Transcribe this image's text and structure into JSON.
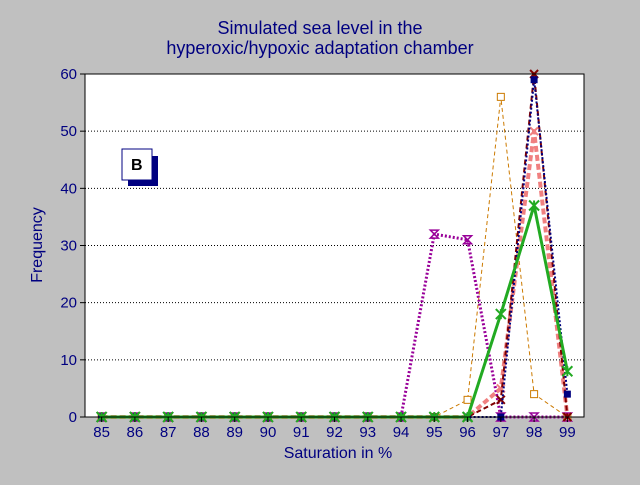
{
  "chart_data": {
    "type": "line",
    "title_line1": "Simulated sea level in the",
    "title_line2": "hyperoxic/hypoxic adaptation chamber",
    "xlabel": "Saturation in %",
    "ylabel": "Frequency",
    "panel_label": "B",
    "x": [
      85,
      86,
      87,
      88,
      89,
      90,
      91,
      92,
      93,
      94,
      95,
      96,
      97,
      98,
      99
    ],
    "xlim": [
      84.5,
      99.5
    ],
    "ylim": [
      0,
      60
    ],
    "yticks": [
      0,
      10,
      20,
      30,
      40,
      50,
      60
    ],
    "grid": "horizontal dotted",
    "colors": {
      "background": "#c0c0c0",
      "axis_text": "#000080",
      "plot_area": "#ffffff"
    },
    "series": [
      {
        "color": "#cc7a00",
        "style": "dashed-thin",
        "marker": "open-square",
        "values": [
          0,
          0,
          0,
          0,
          0,
          0,
          0,
          0,
          0,
          0,
          0,
          3,
          56,
          4,
          0
        ]
      },
      {
        "color": "#990099",
        "style": "dotted-thick",
        "marker": "hourglass",
        "values": [
          0,
          0,
          0,
          0,
          0,
          0,
          0,
          0,
          0,
          0,
          32,
          31,
          0,
          0,
          0
        ]
      },
      {
        "color": "#f08080",
        "style": "dashed-thick",
        "marker": "x",
        "values": [
          0,
          0,
          0,
          0,
          0,
          0,
          0,
          0,
          0,
          0,
          0,
          0,
          5,
          50,
          0
        ]
      },
      {
        "color": "#800000",
        "style": "dashed",
        "marker": "x",
        "values": [
          0,
          0,
          0,
          0,
          0,
          0,
          0,
          0,
          0,
          0,
          0,
          0,
          3,
          60,
          0
        ]
      },
      {
        "color": "#000080",
        "style": "dotted",
        "marker": "filled-square",
        "values": [
          0,
          0,
          0,
          0,
          0,
          0,
          0,
          0,
          0,
          0,
          0,
          0,
          0,
          59,
          4
        ]
      },
      {
        "color": "#22aa22",
        "style": "solid-thick",
        "marker": "star",
        "values": [
          0,
          0,
          0,
          0,
          0,
          0,
          0,
          0,
          0,
          0,
          0,
          0,
          18,
          37,
          8
        ]
      }
    ]
  }
}
